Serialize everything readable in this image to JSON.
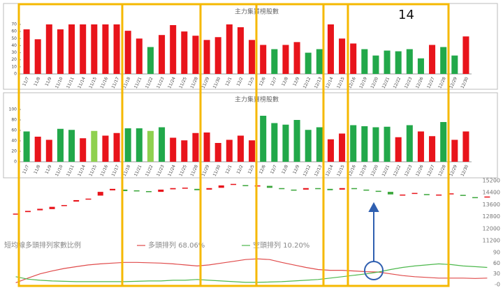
{
  "annotation": "14",
  "chart_data": [
    {
      "type": "bar",
      "title": "主力集買榜股數",
      "categories": [
        "11/7",
        "11/8",
        "11/9",
        "11/10",
        "11/11",
        "11/14",
        "11/15",
        "11/16",
        "11/17",
        "11/18",
        "11/21",
        "11/22",
        "11/23",
        "11/24",
        "11/25",
        "11/28",
        "11/29",
        "11/30",
        "12/1",
        "12/2",
        "12/5",
        "12/6",
        "12/7",
        "12/8",
        "12/9",
        "12/12",
        "12/13",
        "12/14",
        "12/15",
        "12/16",
        "12/19",
        "12/20",
        "12/21",
        "12/22",
        "12/23",
        "12/26",
        "12/27",
        "12/28",
        "12/29",
        "12/30"
      ],
      "values": [
        63,
        49,
        70,
        63,
        70,
        70,
        70,
        70,
        70,
        61,
        50,
        38,
        55,
        69,
        60,
        54,
        48,
        52,
        70,
        66,
        48,
        41,
        35,
        41,
        45,
        30,
        35,
        70,
        50,
        43,
        35,
        26,
        33,
        32,
        35,
        22,
        41,
        38,
        26,
        53
      ],
      "colors": [
        "#e8141b",
        "#e8141b",
        "#e8141b",
        "#e8141b",
        "#e8141b",
        "#e8141b",
        "#e8141b",
        "#e8141b",
        "#e8141b",
        "#e8141b",
        "#e8141b",
        "#22a84a",
        "#e8141b",
        "#e8141b",
        "#e8141b",
        "#e8141b",
        "#e8141b",
        "#e8141b",
        "#e8141b",
        "#e8141b",
        "#e8141b",
        "#e8141b",
        "#22a84a",
        "#e8141b",
        "#e8141b",
        "#22a84a",
        "#22a84a",
        "#e8141b",
        "#e8141b",
        "#e8141b",
        "#22a84a",
        "#22a84a",
        "#22a84a",
        "#22a84a",
        "#22a84a",
        "#22a84a",
        "#e8141b",
        "#22a84a",
        "#22a84a",
        "#e8141b"
      ],
      "ylim": [
        0,
        70
      ],
      "yticks": [
        0,
        10,
        20,
        30,
        40,
        50,
        60,
        70
      ]
    },
    {
      "type": "bar",
      "title": "主力集賣榜股數",
      "categories": [
        "11/7",
        "11/8",
        "11/9",
        "11/10",
        "11/11",
        "11/14",
        "11/15",
        "11/16",
        "11/17",
        "11/18",
        "11/21",
        "11/22",
        "11/23",
        "11/24",
        "11/25",
        "11/28",
        "11/29",
        "11/30",
        "12/1",
        "12/2",
        "12/5",
        "12/6",
        "12/7",
        "12/8",
        "12/9",
        "12/12",
        "12/13",
        "12/14",
        "12/15",
        "12/16",
        "12/19",
        "12/20",
        "12/21",
        "12/22",
        "12/23",
        "12/26",
        "12/27",
        "12/28",
        "12/29",
        "12/30"
      ],
      "values": [
        58,
        48,
        42,
        63,
        61,
        45,
        59,
        50,
        55,
        64,
        64,
        59,
        66,
        46,
        41,
        55,
        56,
        36,
        42,
        50,
        41,
        88,
        74,
        71,
        80,
        61,
        66,
        43,
        54,
        70,
        68,
        66,
        67,
        47,
        70,
        58,
        49,
        76,
        42,
        58
      ],
      "colors": [
        "#22a84a",
        "#e8141b",
        "#e8141b",
        "#22a84a",
        "#22a84a",
        "#e8141b",
        "#8fd14f",
        "#e8141b",
        "#e8141b",
        "#22a84a",
        "#22a84a",
        "#8fd14f",
        "#22a84a",
        "#e8141b",
        "#e8141b",
        "#e8141b",
        "#e8141b",
        "#e8141b",
        "#e8141b",
        "#e8141b",
        "#e8141b",
        "#22a84a",
        "#22a84a",
        "#22a84a",
        "#22a84a",
        "#22a84a",
        "#22a84a",
        "#e8141b",
        "#e8141b",
        "#22a84a",
        "#22a84a",
        "#22a84a",
        "#22a84a",
        "#e8141b",
        "#22a84a",
        "#e8141b",
        "#e8141b",
        "#22a84a",
        "#e8141b",
        "#e8141b"
      ],
      "ylim": [
        0,
        100
      ],
      "yticks": [
        0,
        20,
        40,
        60,
        80,
        100
      ]
    },
    {
      "type": "candlestick",
      "open": [
        12950,
        13100,
        13220,
        13300,
        13500,
        13800,
        13950,
        14200,
        14550,
        14600,
        14550,
        14500,
        14450,
        14620,
        14700,
        14650,
        14600,
        14720,
        14950,
        14900,
        14850,
        14850,
        14700,
        14600,
        14600,
        14700,
        14650,
        14600,
        14700,
        14600,
        14520,
        14450,
        14250,
        14350,
        14300,
        14250,
        14300,
        14250,
        14100,
        14120
      ],
      "close": [
        13000,
        13180,
        13320,
        13450,
        13570,
        13900,
        14000,
        14450,
        14650,
        14500,
        14480,
        14460,
        14600,
        14700,
        14730,
        14560,
        14700,
        14880,
        14980,
        14850,
        14880,
        14720,
        14630,
        14550,
        14700,
        14650,
        14560,
        14700,
        14650,
        14580,
        14500,
        14280,
        14270,
        14380,
        14250,
        14270,
        14350,
        14200,
        14060,
        14140
      ],
      "up_color": "#e8141b",
      "down_color": "#3aa63a",
      "ylim": [
        11200,
        15200
      ],
      "yticks": [
        11200,
        12000,
        12800,
        13600,
        14400,
        15200
      ]
    },
    {
      "type": "line",
      "title": "短均線多頭排列家數比例",
      "series": [
        {
          "name": "多頭排列 68.06%",
          "color": "#e04a4a",
          "values": [
            5,
            18,
            30,
            38,
            45,
            50,
            55,
            58,
            60,
            62,
            62,
            61,
            60,
            58,
            55,
            52,
            55,
            60,
            65,
            70,
            72,
            70,
            62,
            55,
            48,
            42,
            40,
            40,
            38,
            36,
            35,
            30,
            25,
            22,
            20,
            18,
            18,
            18,
            17,
            18
          ]
        },
        {
          "name": "空頭排列 10.20%",
          "color": "#4cb84c",
          "values": [
            22,
            15,
            12,
            10,
            9,
            8,
            8,
            8,
            8,
            8,
            9,
            10,
            10,
            12,
            12,
            14,
            12,
            10,
            8,
            6,
            6,
            7,
            8,
            10,
            12,
            14,
            18,
            22,
            26,
            30,
            35,
            42,
            48,
            52,
            55,
            58,
            56,
            52,
            50,
            48
          ]
        }
      ],
      "ylim": [
        0,
        90
      ],
      "yticks": [
        0,
        30,
        60,
        90
      ]
    }
  ]
}
